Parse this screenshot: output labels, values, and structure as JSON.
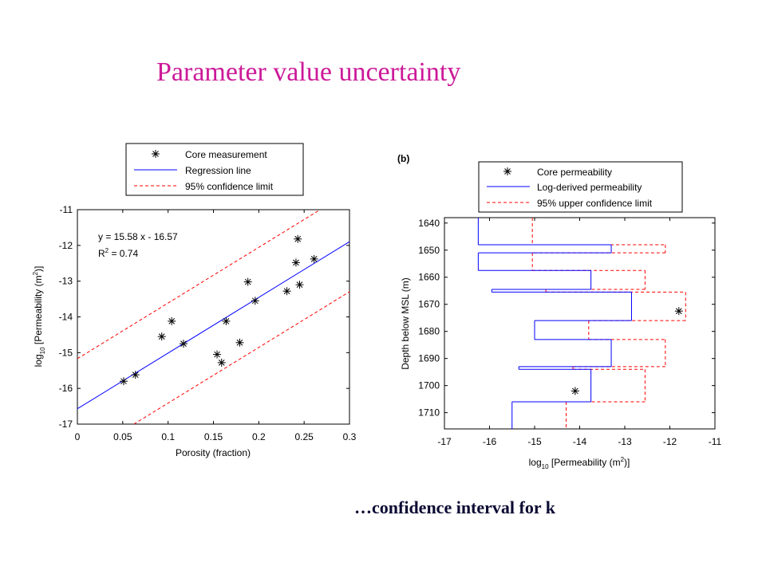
{
  "slide": {
    "title": "Parameter value uncertainty",
    "caption": "…confidence interval for k"
  },
  "chart_data": [
    {
      "type": "scatter",
      "panel": "left",
      "xlabel": "Porosity (fraction)",
      "ylabel_main": "log",
      "ylabel_sub": "10",
      "ylabel_rest": " [Permeability (m",
      "ylabel_sup": "2",
      "ylabel_end": ")]",
      "xlim": [
        0,
        0.3
      ],
      "ylim": [
        -17,
        -11
      ],
      "xticks": [
        0,
        0.05,
        0.1,
        0.15,
        0.2,
        0.25,
        0.3
      ],
      "xtick_labels": [
        "0",
        "0.05",
        "0.1",
        "0.15",
        "0.2",
        "0.25",
        "0.3"
      ],
      "yticks": [
        -17,
        -16,
        -15,
        -14,
        -13,
        -12,
        -11
      ],
      "ytick_labels": [
        "-17",
        "-16",
        "-15",
        "-14",
        "-13",
        "-12",
        "-11"
      ],
      "grid": false,
      "legend_position": "above plot",
      "legend": [
        "Core measurement",
        "Regression line",
        "95% confidence limit"
      ],
      "annotation_eq": "y = 15.58 x - 16.57",
      "annotation_r2_base": "R",
      "annotation_r2_sup": "2",
      "annotation_r2_rest": " = 0.74",
      "regression": {
        "slope": 15.58,
        "intercept": -16.57,
        "color": "#0000ff"
      },
      "confidence_offset": 1.4,
      "confidence_color": "#ff0000",
      "points": [
        {
          "x": 0.051,
          "y": -15.8
        },
        {
          "x": 0.064,
          "y": -15.62
        },
        {
          "x": 0.093,
          "y": -14.55
        },
        {
          "x": 0.104,
          "y": -14.12
        },
        {
          "x": 0.117,
          "y": -14.75
        },
        {
          "x": 0.154,
          "y": -15.05
        },
        {
          "x": 0.159,
          "y": -15.28
        },
        {
          "x": 0.164,
          "y": -14.12
        },
        {
          "x": 0.179,
          "y": -14.72
        },
        {
          "x": 0.188,
          "y": -13.02
        },
        {
          "x": 0.196,
          "y": -13.55
        },
        {
          "x": 0.231,
          "y": -13.28
        },
        {
          "x": 0.241,
          "y": -12.48
        },
        {
          "x": 0.243,
          "y": -11.82
        },
        {
          "x": 0.245,
          "y": -13.1
        },
        {
          "x": 0.261,
          "y": -12.38
        }
      ]
    },
    {
      "type": "step",
      "panel": "right",
      "panel_label": "(b)",
      "xlabel_main": "log",
      "xlabel_sub": "10",
      "xlabel_rest": " [Permeability (m",
      "xlabel_sup": "2",
      "xlabel_end": ")]",
      "ylabel": "Depth below MSL (m)",
      "xlim": [
        -17,
        -11
      ],
      "ylim": [
        1638,
        1716
      ],
      "y_reversed": true,
      "xticks": [
        -17,
        -16,
        -15,
        -14,
        -13,
        -12,
        -11
      ],
      "xtick_labels": [
        "-17",
        "-16",
        "-15",
        "-14",
        "-13",
        "-12",
        "-11"
      ],
      "yticks": [
        1640,
        1650,
        1660,
        1670,
        1680,
        1690,
        1700,
        1710
      ],
      "ytick_labels": [
        "1640",
        "1650",
        "1660",
        "1670",
        "1680",
        "1690",
        "1700",
        "1710"
      ],
      "grid": false,
      "legend_position": "above plot",
      "legend": [
        "Core permeability",
        "Log-derived permeability",
        "95% upper confidence limit"
      ],
      "log_color": "#0000ff",
      "upper_color": "#ff0000",
      "log_derived": [
        {
          "top": 1638,
          "bottom": 1648,
          "k": -16.25
        },
        {
          "top": 1648,
          "bottom": 1651,
          "k": -13.3
        },
        {
          "top": 1651,
          "bottom": 1657.5,
          "k": -16.25
        },
        {
          "top": 1657.5,
          "bottom": 1664.5,
          "k": -13.75
        },
        {
          "top": 1664.5,
          "bottom": 1665.5,
          "k": -15.95
        },
        {
          "top": 1665.5,
          "bottom": 1676,
          "k": -12.85
        },
        {
          "top": 1676,
          "bottom": 1683,
          "k": -15
        },
        {
          "top": 1683,
          "bottom": 1693,
          "k": -13.3
        },
        {
          "top": 1693,
          "bottom": 1694,
          "k": -15.35
        },
        {
          "top": 1694,
          "bottom": 1706,
          "k": -13.75
        },
        {
          "top": 1706,
          "bottom": 1716,
          "k": -15.5
        }
      ],
      "upper_confidence": [
        {
          "top": 1638,
          "bottom": 1648,
          "k": -15.05
        },
        {
          "top": 1648,
          "bottom": 1651,
          "k": -12.1
        },
        {
          "top": 1651,
          "bottom": 1657.5,
          "k": -15.05
        },
        {
          "top": 1657.5,
          "bottom": 1664.5,
          "k": -12.55
        },
        {
          "top": 1664.5,
          "bottom": 1665.5,
          "k": -14.75
        },
        {
          "top": 1665.5,
          "bottom": 1676,
          "k": -11.65
        },
        {
          "top": 1676,
          "bottom": 1683,
          "k": -13.8
        },
        {
          "top": 1683,
          "bottom": 1693,
          "k": -12.1
        },
        {
          "top": 1693,
          "bottom": 1694,
          "k": -14.15
        },
        {
          "top": 1694,
          "bottom": 1706,
          "k": -12.55
        },
        {
          "top": 1706,
          "bottom": 1716,
          "k": -14.3
        }
      ],
      "core_points": [
        {
          "k": -11.8,
          "depth": 1672.5
        },
        {
          "k": -14.1,
          "depth": 1702
        }
      ]
    }
  ]
}
